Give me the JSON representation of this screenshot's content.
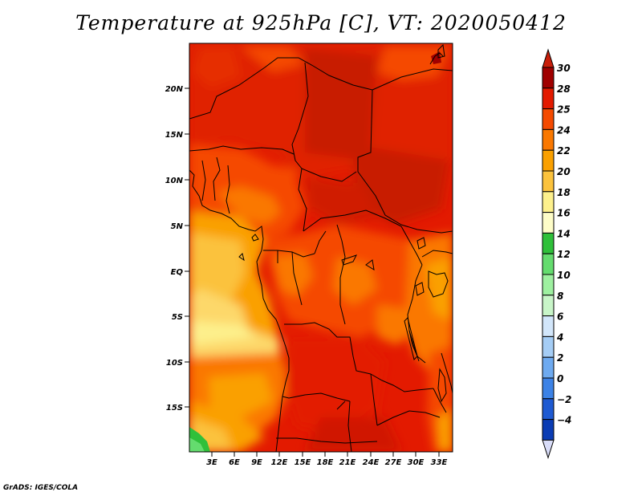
{
  "title": "Temperature at 925hPa [C], VT: 2020050412",
  "credit": "GrADS: IGES/COLA",
  "map": {
    "lat_labels": [
      "20N",
      "15N",
      "10N",
      "5N",
      "EQ",
      "5S",
      "10S",
      "15S"
    ],
    "lon_labels": [
      "3E",
      "6E",
      "9E",
      "12E",
      "15E",
      "18E",
      "21E",
      "24E",
      "27E",
      "30E",
      "33E"
    ],
    "region": "Central Africa",
    "units": "C"
  },
  "legend": {
    "levels": [
      {
        "label": "30",
        "color": "#a00000"
      },
      {
        "label": "28",
        "color": "#e31a00"
      },
      {
        "label": "25",
        "color": "#f54a00"
      },
      {
        "label": "24",
        "color": "#fa7800"
      },
      {
        "label": "22",
        "color": "#faa000"
      },
      {
        "label": "20",
        "color": "#fbc23c"
      },
      {
        "label": "18",
        "color": "#fdf08c"
      },
      {
        "label": "16",
        "color": "#fefdc8"
      },
      {
        "label": "14",
        "color": "#2fc03a"
      },
      {
        "label": "12",
        "color": "#64dc6e"
      },
      {
        "label": "10",
        "color": "#9ef0a0"
      },
      {
        "label": "8",
        "color": "#c8f5c8"
      },
      {
        "label": "6",
        "color": "#d2e6fa"
      },
      {
        "label": "4",
        "color": "#a5cdf5"
      },
      {
        "label": "2",
        "color": "#6eaaf0"
      },
      {
        "label": "0",
        "color": "#3c82e6"
      },
      {
        "label": "−2",
        "color": "#1e5ad2"
      },
      {
        "label": "−4",
        "color": "#0a3cb4"
      }
    ],
    "top_color": "#c81e0a",
    "bottom_color": "#000a6e",
    "under_color": "#d8dcf8"
  }
}
